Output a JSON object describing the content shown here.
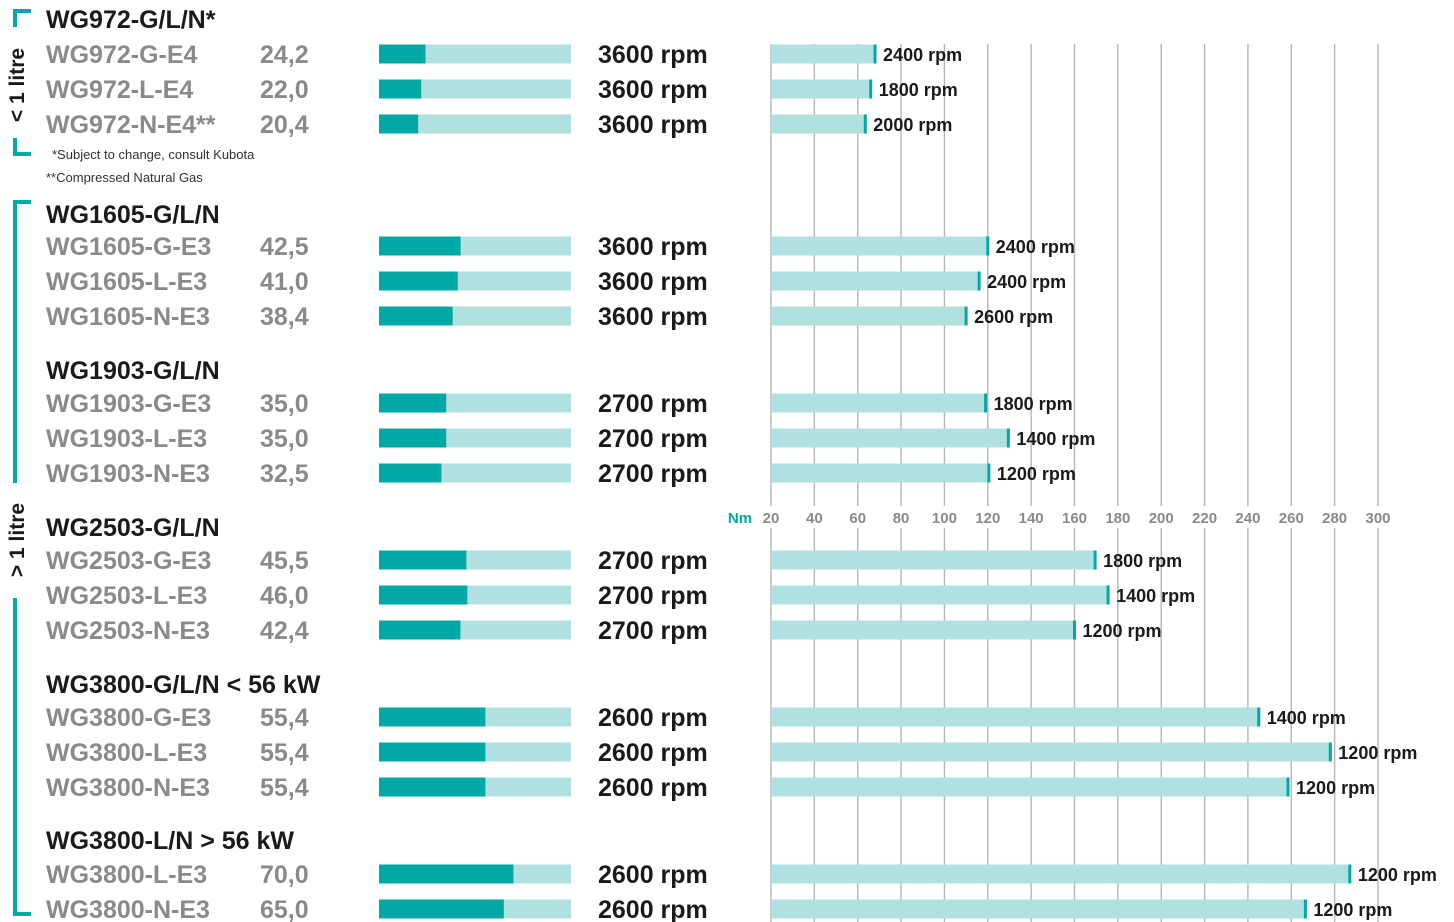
{
  "chart_data": {
    "type": "bar",
    "colors": {
      "accent": "#00a9a6",
      "light": "#b0e0e0",
      "grid": "#b5b5b5",
      "model_text": "#8a8a8a",
      "dark_text": "#1a1a1a"
    },
    "power_scale_max": 100,
    "torque_axis": {
      "unit": "Nm",
      "min": 20,
      "max": 300,
      "ticks": [
        20,
        40,
        60,
        80,
        100,
        120,
        140,
        160,
        180,
        200,
        220,
        240,
        260,
        280,
        300
      ],
      "grid": true
    },
    "side_labels": {
      "small": "< 1 litre",
      "large": "> 1 litre"
    },
    "notes": [
      "*Subject to change, consult Kubota",
      "**Compressed Natural Gas"
    ],
    "groups": [
      {
        "title": "WG972-G/L/N*",
        "class": "small",
        "models": [
          {
            "name": "WG972-G-E4",
            "power_label": "24,2",
            "power": 24.2,
            "rated_speed": "3600 rpm",
            "torque": 68,
            "torque_speed": "2400 rpm"
          },
          {
            "name": "WG972-L-E4",
            "power_label": "22,0",
            "power": 22.0,
            "rated_speed": "3600 rpm",
            "torque": 66,
            "torque_speed": "1800 rpm"
          },
          {
            "name": "WG972-N-E4**",
            "power_label": "20,4",
            "power": 20.4,
            "rated_speed": "3600 rpm",
            "torque": 63.5,
            "torque_speed": "2000 rpm"
          }
        ]
      },
      {
        "title": "WG1605-G/L/N",
        "class": "large",
        "models": [
          {
            "name": "WG1605-G-E3",
            "power_label": "42,5",
            "power": 42.5,
            "rated_speed": "3600 rpm",
            "torque": 120,
            "torque_speed": "2400 rpm"
          },
          {
            "name": "WG1605-L-E3",
            "power_label": "41,0",
            "power": 41.0,
            "rated_speed": "3600 rpm",
            "torque": 116,
            "torque_speed": "2400 rpm"
          },
          {
            "name": "WG1605-N-E3",
            "power_label": "38,4",
            "power": 38.4,
            "rated_speed": "3600 rpm",
            "torque": 110,
            "torque_speed": "2600 rpm"
          }
        ]
      },
      {
        "title": "WG1903-G/L/N",
        "class": "large",
        "models": [
          {
            "name": "WG1903-G-E3",
            "power_label": "35,0",
            "power": 35.0,
            "rated_speed": "2700 rpm",
            "torque": 119,
            "torque_speed": "1800 rpm"
          },
          {
            "name": "WG1903-L-E3",
            "power_label": "35,0",
            "power": 35.0,
            "rated_speed": "2700 rpm",
            "torque": 129.5,
            "torque_speed": "1400 rpm"
          },
          {
            "name": "WG1903-N-E3",
            "power_label": "32,5",
            "power": 32.5,
            "rated_speed": "2700 rpm",
            "torque": 120.5,
            "torque_speed": "1200 rpm"
          }
        ]
      },
      {
        "title": "WG2503-G/L/N",
        "class": "large",
        "models": [
          {
            "name": "WG2503-G-E3",
            "power_label": "45,5",
            "power": 45.5,
            "rated_speed": "2700 rpm",
            "torque": 169.5,
            "torque_speed": "1800 rpm"
          },
          {
            "name": "WG2503-L-E3",
            "power_label": "46,0",
            "power": 46.0,
            "rated_speed": "2700 rpm",
            "torque": 175.5,
            "torque_speed": "1400 rpm"
          },
          {
            "name": "WG2503-N-E3",
            "power_label": "42,4",
            "power": 42.4,
            "rated_speed": "2700 rpm",
            "torque": 160,
            "torque_speed": "1200 rpm"
          }
        ]
      },
      {
        "title": "WG3800-G/L/N < 56 kW",
        "class": "large",
        "models": [
          {
            "name": "WG3800-G-E3",
            "power_label": "55,4",
            "power": 55.4,
            "rated_speed": "2600 rpm",
            "torque": 245,
            "torque_speed": "1400 rpm"
          },
          {
            "name": "WG3800-L-E3",
            "power_label": "55,4",
            "power": 55.4,
            "rated_speed": "2600 rpm",
            "torque": 278,
            "torque_speed": "1200 rpm"
          },
          {
            "name": "WG3800-N-E3",
            "power_label": "55,4",
            "power": 55.4,
            "rated_speed": "2600 rpm",
            "torque": 258.5,
            "torque_speed": "1200 rpm"
          }
        ]
      },
      {
        "title": "WG3800-L/N > 56 kW",
        "class": "large",
        "models": [
          {
            "name": "WG3800-L-E3",
            "power_label": "70,0",
            "power": 70.0,
            "rated_speed": "2600 rpm",
            "torque": 287,
            "torque_speed": "1200 rpm"
          },
          {
            "name": "WG3800-N-E3",
            "power_label": "65,0",
            "power": 65.0,
            "rated_speed": "2600 rpm",
            "torque": 266.5,
            "torque_speed": "1200 rpm"
          }
        ]
      }
    ]
  }
}
